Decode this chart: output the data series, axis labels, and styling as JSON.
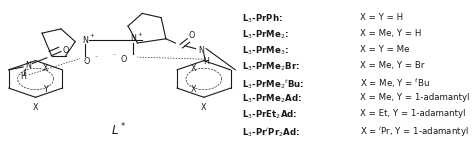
{
  "fig_width": 4.74,
  "fig_height": 1.41,
  "dpi": 100,
  "bg_color": "#ffffff",
  "text_color": "#1a1a1a",
  "font_size": 6.2,
  "legend_entries": [
    {
      "label": "L$_3$-PrPh:",
      "value": "X = Y = H"
    },
    {
      "label": "L$_3$-PrMe$_2$:",
      "value": "X = Me, Y = H"
    },
    {
      "label": "L$_3$-PrMe$_3$:",
      "value": "X = Y = Me"
    },
    {
      "label": "L$_3$-PrMe$_2$Br:",
      "value": "X = Me, Y = Br"
    },
    {
      "label": "L$_3$-PrMe$_2$$^t$Bu:",
      "value": "X = Me, Y = $^t$Bu"
    },
    {
      "label": "L$_3$-PrMe$_2$Ad:",
      "value": "X = Me, Y = 1-adamantyl"
    },
    {
      "label": "L$_3$-PrEt$_2$Ad:",
      "value": "X = Et, Y = 1-adamantyl"
    },
    {
      "label": "L$_3$-Pr$^i$Pr$_2$Ad:",
      "value": "X = $^i$Pr, Y = 1-adamantyl"
    }
  ],
  "structure_label": "$L^*$",
  "lw": 0.8,
  "draw_color": "#1a1a1a"
}
